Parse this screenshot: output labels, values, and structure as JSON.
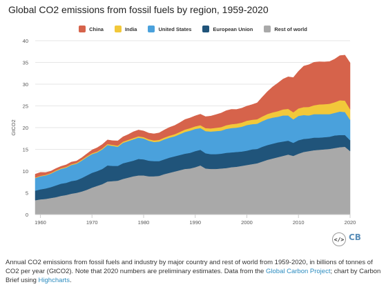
{
  "title": "Global CO2 emissions from fossil fuels by region, 1959-2020",
  "legend": [
    {
      "name": "China",
      "color": "#d6634b"
    },
    {
      "name": "India",
      "color": "#f2c83a"
    },
    {
      "name": "United States",
      "color": "#4aa1dc"
    },
    {
      "name": "European Union",
      "color": "#20547a"
    },
    {
      "name": "Rest of world",
      "color": "#a9a9a9"
    }
  ],
  "caption": {
    "part1": "Annual CO2 emissions from fossil fuels and industry by major country and rest of world from 1959-2020, in billions of tonnes of CO2 per year (GtCO2). Note that 2020 numbers are preliminary estimates. Data from the ",
    "link1": "Global Carbon Project",
    "part2": "; chart by Carbon Brief using ",
    "link2": "Highcharts",
    "part3": "."
  },
  "embed_icon": "code-embed-icon",
  "logo_text": "CB",
  "chart_data": {
    "type": "area",
    "stacking": "normal",
    "ylabel": "GtCO2",
    "ylim": [
      0,
      40
    ],
    "yticks": [
      0,
      5,
      10,
      15,
      20,
      25,
      30,
      35,
      40
    ],
    "xlim": [
      1959,
      2020
    ],
    "xticks": [
      1960,
      1970,
      1980,
      1990,
      2000,
      2010,
      2020
    ],
    "legend_position": "top",
    "grid": true,
    "x": [
      1959,
      1960,
      1961,
      1962,
      1963,
      1964,
      1965,
      1966,
      1967,
      1968,
      1969,
      1970,
      1971,
      1972,
      1973,
      1974,
      1975,
      1976,
      1977,
      1978,
      1979,
      1980,
      1981,
      1982,
      1983,
      1984,
      1985,
      1986,
      1987,
      1988,
      1989,
      1990,
      1991,
      1992,
      1993,
      1994,
      1995,
      1996,
      1997,
      1998,
      1999,
      2000,
      2001,
      2002,
      2003,
      2004,
      2005,
      2006,
      2007,
      2008,
      2009,
      2010,
      2011,
      2012,
      2013,
      2014,
      2015,
      2016,
      2017,
      2018,
      2019,
      2020
    ],
    "series": [
      {
        "name": "Rest of world",
        "color": "#a9a9a9",
        "values": [
          3.3,
          3.5,
          3.6,
          3.8,
          4.0,
          4.3,
          4.5,
          4.8,
          5.0,
          5.3,
          5.7,
          6.2,
          6.6,
          7.0,
          7.6,
          7.7,
          7.8,
          8.2,
          8.5,
          8.8,
          9.0,
          9.0,
          8.8,
          8.8,
          8.9,
          9.3,
          9.6,
          9.9,
          10.2,
          10.5,
          10.6,
          10.9,
          11.3,
          10.6,
          10.5,
          10.5,
          10.6,
          10.7,
          10.9,
          11.0,
          11.2,
          11.4,
          11.6,
          11.8,
          12.2,
          12.6,
          12.9,
          13.2,
          13.5,
          13.8,
          13.5,
          14.0,
          14.4,
          14.6,
          14.8,
          14.9,
          15.0,
          15.1,
          15.3,
          15.5,
          15.6,
          14.6
        ]
      },
      {
        "name": "European Union",
        "color": "#20547a",
        "values": [
          2.2,
          2.3,
          2.4,
          2.5,
          2.7,
          2.8,
          2.8,
          2.9,
          2.9,
          3.1,
          3.3,
          3.4,
          3.4,
          3.5,
          3.7,
          3.5,
          3.4,
          3.6,
          3.6,
          3.6,
          3.8,
          3.7,
          3.6,
          3.5,
          3.4,
          3.4,
          3.5,
          3.5,
          3.5,
          3.5,
          3.6,
          3.7,
          3.6,
          3.5,
          3.4,
          3.4,
          3.4,
          3.5,
          3.4,
          3.4,
          3.3,
          3.3,
          3.4,
          3.3,
          3.4,
          3.4,
          3.4,
          3.4,
          3.3,
          3.2,
          3.0,
          3.1,
          3.0,
          2.9,
          2.9,
          2.8,
          2.8,
          2.8,
          2.9,
          2.8,
          2.7,
          2.5
        ]
      },
      {
        "name": "United States",
        "color": "#4aa1dc",
        "values": [
          2.9,
          3.0,
          3.0,
          3.1,
          3.3,
          3.4,
          3.5,
          3.7,
          3.8,
          4.0,
          4.2,
          4.3,
          4.3,
          4.5,
          4.7,
          4.6,
          4.4,
          4.7,
          4.8,
          4.9,
          4.9,
          4.8,
          4.6,
          4.4,
          4.5,
          4.6,
          4.6,
          4.6,
          4.8,
          5.0,
          5.1,
          5.1,
          5.0,
          5.1,
          5.2,
          5.3,
          5.3,
          5.5,
          5.6,
          5.6,
          5.7,
          5.9,
          5.8,
          5.8,
          5.9,
          6.0,
          6.0,
          5.9,
          6.0,
          5.8,
          5.4,
          5.6,
          5.5,
          5.3,
          5.4,
          5.4,
          5.3,
          5.2,
          5.2,
          5.4,
          5.3,
          4.7
        ]
      },
      {
        "name": "India",
        "color": "#f2c83a",
        "values": [
          0.12,
          0.12,
          0.13,
          0.14,
          0.15,
          0.16,
          0.17,
          0.17,
          0.18,
          0.19,
          0.2,
          0.2,
          0.21,
          0.22,
          0.23,
          0.24,
          0.26,
          0.27,
          0.29,
          0.3,
          0.31,
          0.31,
          0.33,
          0.36,
          0.38,
          0.4,
          0.44,
          0.47,
          0.5,
          0.55,
          0.59,
          0.6,
          0.66,
          0.69,
          0.72,
          0.76,
          0.81,
          0.85,
          0.89,
          0.91,
          0.96,
          0.99,
          1.01,
          1.03,
          1.07,
          1.14,
          1.21,
          1.29,
          1.39,
          1.52,
          1.64,
          1.72,
          1.82,
          1.96,
          2.04,
          2.24,
          2.29,
          2.39,
          2.44,
          2.59,
          2.62,
          2.44
        ]
      },
      {
        "name": "China",
        "color": "#d6634b",
        "values": [
          0.78,
          0.79,
          0.55,
          0.44,
          0.44,
          0.44,
          0.48,
          0.52,
          0.44,
          0.48,
          0.58,
          0.77,
          0.87,
          0.92,
          0.95,
          0.96,
          1.1,
          1.12,
          1.22,
          1.44,
          1.45,
          1.43,
          1.42,
          1.52,
          1.61,
          1.76,
          1.92,
          2.02,
          2.14,
          2.32,
          2.35,
          2.42,
          2.54,
          2.64,
          2.84,
          3.03,
          3.24,
          3.36,
          3.42,
          3.28,
          3.32,
          3.37,
          3.49,
          3.78,
          4.48,
          5.17,
          5.88,
          6.46,
          6.98,
          7.38,
          7.98,
          8.56,
          9.44,
          9.72,
          9.9,
          9.82,
          9.74,
          9.71,
          9.92,
          10.28,
          10.47,
          10.67
        ]
      }
    ]
  }
}
